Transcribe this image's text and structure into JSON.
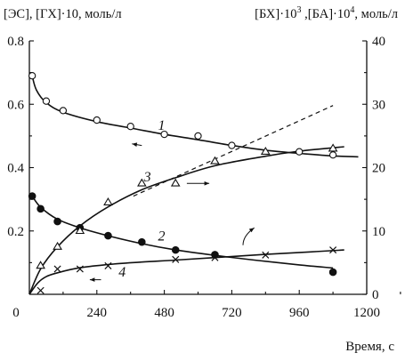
{
  "chart_data": {
    "type": "line",
    "ylabel_left": "[ЭС], [ГХ]·10, моль/л",
    "ylabel_right_parts": [
      "[БХ]·10",
      "3",
      " ,[БА]·10",
      "4",
      ", моль/л"
    ],
    "xlabel": "Время, с",
    "xlim": [
      0,
      1200
    ],
    "ylim_left": [
      0,
      0.8
    ],
    "ylim_right": [
      0,
      40
    ],
    "x_ticks": [
      "0",
      "240",
      "480",
      "720",
      "960",
      "1200"
    ],
    "y_ticks_left": [
      "0.2",
      "0.4",
      "0.6",
      "0.8"
    ],
    "y_ticks_right": [
      "0",
      "10",
      "20",
      "30",
      "40"
    ],
    "series": [
      {
        "name": "1",
        "axis": "left",
        "marker": "circle-open",
        "points": [
          [
            10,
            0.69
          ],
          [
            60,
            0.61
          ],
          [
            120,
            0.58
          ],
          [
            240,
            0.55
          ],
          [
            360,
            0.53
          ],
          [
            480,
            0.505
          ],
          [
            600,
            0.5
          ],
          [
            720,
            0.47
          ],
          [
            960,
            0.45
          ],
          [
            1080,
            0.44
          ]
        ],
        "curve": [
          [
            10,
            0.69
          ],
          [
            25,
            0.645
          ],
          [
            60,
            0.605
          ],
          [
            120,
            0.575
          ],
          [
            240,
            0.545
          ],
          [
            360,
            0.525
          ],
          [
            480,
            0.505
          ],
          [
            600,
            0.488
          ],
          [
            720,
            0.47
          ],
          [
            840,
            0.455
          ],
          [
            960,
            0.445
          ],
          [
            1080,
            0.437
          ],
          [
            1170,
            0.434
          ]
        ],
        "label_at": [
          470,
          0.52
        ]
      },
      {
        "name": "2",
        "axis": "left",
        "marker": "circle-filled",
        "points": [
          [
            10,
            0.31
          ],
          [
            40,
            0.27
          ],
          [
            100,
            0.23
          ],
          [
            180,
            0.21
          ],
          [
            280,
            0.185
          ],
          [
            400,
            0.165
          ],
          [
            520,
            0.14
          ],
          [
            660,
            0.125
          ],
          [
            1080,
            0.07
          ]
        ],
        "curve": [
          [
            10,
            0.31
          ],
          [
            40,
            0.275
          ],
          [
            100,
            0.237
          ],
          [
            180,
            0.21
          ],
          [
            280,
            0.185
          ],
          [
            400,
            0.16
          ],
          [
            520,
            0.14
          ],
          [
            660,
            0.123
          ],
          [
            800,
            0.108
          ],
          [
            960,
            0.093
          ],
          [
            1080,
            0.083
          ]
        ],
        "label_at": [
          470,
          0.17
        ]
      },
      {
        "name": "3",
        "axis": "right",
        "marker": "triangle-open",
        "points": [
          [
            40,
            4.5
          ],
          [
            100,
            7.5
          ],
          [
            180,
            10
          ],
          [
            280,
            14.5
          ],
          [
            400,
            17.5
          ],
          [
            520,
            17.5
          ],
          [
            660,
            21
          ],
          [
            840,
            22.5
          ],
          [
            1080,
            23
          ]
        ],
        "curve": [
          [
            0,
            0
          ],
          [
            40,
            4
          ],
          [
            100,
            7.5
          ],
          [
            180,
            10.8
          ],
          [
            280,
            13.8
          ],
          [
            400,
            16.5
          ],
          [
            520,
            18.4
          ],
          [
            660,
            20.3
          ],
          [
            840,
            21.8
          ],
          [
            960,
            22.6
          ],
          [
            1120,
            23.3
          ]
        ],
        "dashed_tangent": [
          [
            370,
            15.5
          ],
          [
            1080,
            29.8
          ]
        ],
        "label_at": [
          420,
          17.8
        ]
      },
      {
        "name": "4",
        "axis": "right",
        "marker": "cross",
        "points": [
          [
            40,
            0.6
          ],
          [
            100,
            4
          ],
          [
            180,
            4
          ],
          [
            280,
            4.5
          ],
          [
            520,
            5.5
          ],
          [
            660,
            5.8
          ],
          [
            840,
            6.2
          ],
          [
            1080,
            7
          ]
        ],
        "curve": [
          [
            0,
            0
          ],
          [
            30,
            1.8
          ],
          [
            60,
            2.8
          ],
          [
            100,
            3.4
          ],
          [
            180,
            4.2
          ],
          [
            280,
            4.7
          ],
          [
            400,
            5.1
          ],
          [
            520,
            5.4
          ],
          [
            660,
            5.8
          ],
          [
            840,
            6.3
          ],
          [
            1000,
            6.7
          ],
          [
            1120,
            7
          ]
        ],
        "label_at": [
          330,
          2.8
        ]
      }
    ],
    "axis_hint_arrows": [
      {
        "series": "1",
        "points": [
          [
            400,
            0.47
          ],
          [
            365,
            0.475
          ]
        ],
        "side": "left"
      },
      {
        "series": "3",
        "points": [
          [
            560,
            17.5
          ],
          [
            640,
            17.5
          ]
        ],
        "side": "right"
      },
      {
        "series": "2",
        "points": [
          [
            760,
            0.155
          ],
          [
            760,
            0.185
          ],
          [
            800,
            0.21
          ]
        ],
        "side": "right"
      },
      {
        "series": "4",
        "points": [
          [
            255,
            2.3
          ],
          [
            215,
            2.3
          ]
        ],
        "side": "left"
      }
    ]
  }
}
